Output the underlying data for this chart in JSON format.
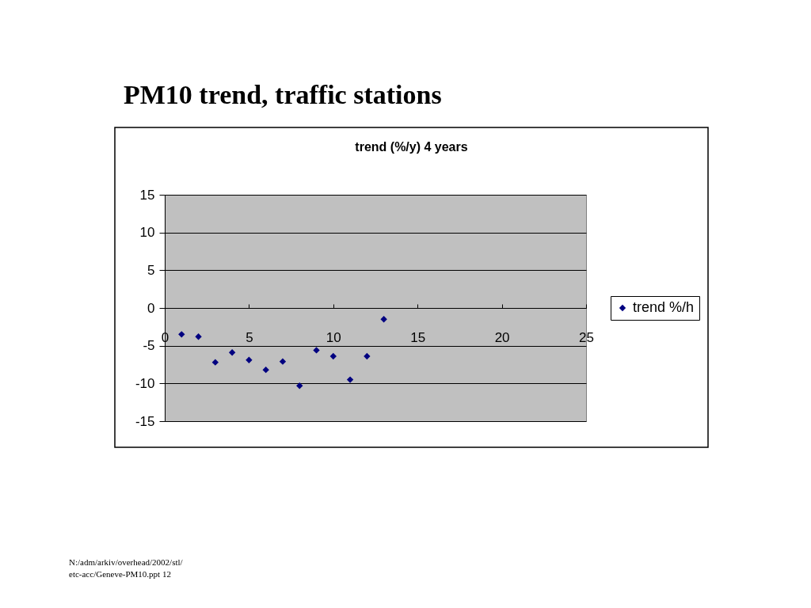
{
  "chart_data": {
    "type": "scatter",
    "title": "PM10 trend, traffic stations",
    "subtitle": "trend (%/y) 4 years",
    "x": [
      1,
      2,
      3,
      4,
      5,
      6,
      7,
      8,
      9,
      10,
      11,
      12,
      13
    ],
    "series": [
      {
        "name": "trend %/h",
        "color": "#000080",
        "values": [
          -3.5,
          -3.8,
          -7.2,
          -5.9,
          -6.9,
          -8.2,
          -7.1,
          -10.3,
          -5.6,
          -6.4,
          -9.5,
          -6.4,
          -1.5
        ]
      }
    ],
    "xlim": [
      0,
      25
    ],
    "xticks": [
      0,
      5,
      10,
      15,
      20,
      25
    ],
    "ylim": [
      -15,
      15
    ],
    "yticks": [
      -15,
      -10,
      -5,
      0,
      5,
      10,
      15
    ],
    "grid": "y",
    "legend": "right",
    "marker": "diamond",
    "annotations": [
      "N:/adm/arkiv/overhead/2002/stl/\netc-acc/Geneve-PM10.ppt 12"
    ]
  }
}
